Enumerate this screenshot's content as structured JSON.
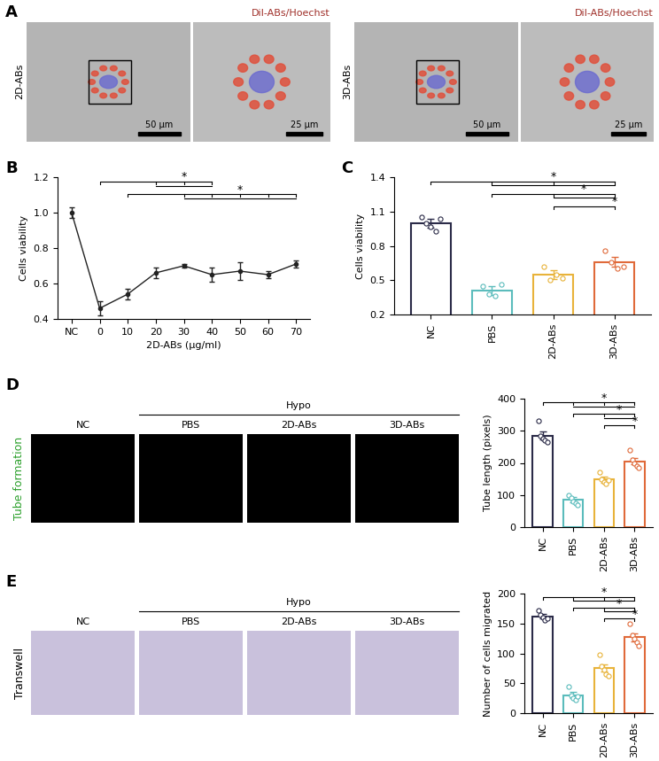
{
  "chart_data": [
    {
      "panel": "B",
      "type": "line",
      "xlabel": "2D-ABs (µg/ml)",
      "ylabel": "Cells viability",
      "categories": [
        "NC",
        "0",
        "10",
        "20",
        "30",
        "40",
        "50",
        "60",
        "70"
      ],
      "values": [
        1.0,
        0.46,
        0.54,
        0.66,
        0.7,
        0.65,
        0.67,
        0.65,
        0.71
      ],
      "errors": [
        0.03,
        0.04,
        0.03,
        0.03,
        0.01,
        0.04,
        0.05,
        0.02,
        0.02
      ],
      "color": "#222222",
      "marker": "o",
      "ylim": [
        0.4,
        1.2
      ],
      "yticks": [
        0.4,
        0.6,
        0.8,
        1.0,
        1.2
      ],
      "significance": [
        {
          "from": "0",
          "to": [
            "20",
            "30",
            "40"
          ],
          "label": "*"
        },
        {
          "from": "10",
          "to": [
            "30",
            "40",
            "50",
            "60",
            "70"
          ],
          "label": "*"
        }
      ]
    },
    {
      "panel": "C",
      "type": "bar",
      "ylabel": "Cells viability",
      "categories": [
        "NC",
        "PBS",
        "2D-ABs",
        "3D-ABs"
      ],
      "values": [
        1.0,
        0.41,
        0.55,
        0.66
      ],
      "errors": [
        0.04,
        0.04,
        0.04,
        0.04
      ],
      "points": [
        [
          1.05,
          1.0,
          0.97,
          0.93,
          1.04
        ],
        [
          0.45,
          0.38,
          0.36,
          0.46
        ],
        [
          0.62,
          0.5,
          0.55,
          0.52
        ],
        [
          0.76,
          0.66,
          0.6,
          0.62
        ]
      ],
      "colors": [
        "#2b2b48",
        "#5bbcbc",
        "#e8b33a",
        "#e06a3a"
      ],
      "ylim": [
        0.2,
        1.4
      ],
      "yticks": [
        0.2,
        0.5,
        0.8,
        1.1,
        1.4
      ],
      "significance": [
        {
          "from": "NC",
          "to": [
            "PBS",
            "2D-ABs",
            "3D-ABs"
          ],
          "label": "*"
        },
        {
          "from": "PBS",
          "to": [
            "2D-ABs",
            "3D-ABs"
          ],
          "label": "*"
        },
        {
          "from": "2D-ABs",
          "to": [
            "3D-ABs"
          ],
          "label": "*"
        }
      ]
    },
    {
      "type": "bar",
      "ylabel": "Tube length (pixels)",
      "categories": [
        "NC",
        "PBS",
        "2D-ABs",
        "3D-ABs"
      ],
      "values": [
        285,
        85,
        148,
        205
      ],
      "errors": [
        12,
        8,
        9,
        10
      ],
      "points": [
        [
          330,
          285,
          275,
          270,
          265
        ],
        [
          100,
          90,
          80,
          75,
          70
        ],
        [
          170,
          150,
          140,
          135,
          145
        ],
        [
          240,
          210,
          200,
          190,
          185
        ]
      ],
      "colors": [
        "#2b2b48",
        "#5bbcbc",
        "#e8b33a",
        "#e06a3a"
      ],
      "ylim": [
        0,
        400
      ],
      "yticks": [
        0,
        100,
        200,
        300,
        400
      ],
      "significance": [
        {
          "from": "NC",
          "to": [
            "PBS",
            "2D-ABs",
            "3D-ABs"
          ],
          "label": "*"
        },
        {
          "from": "PBS",
          "to": [
            "2D-ABs",
            "3D-ABs"
          ],
          "label": "*"
        },
        {
          "from": "2D-ABs",
          "to": [
            "3D-ABs"
          ],
          "label": "*"
        }
      ]
    },
    {
      "type": "bar",
      "ylabel": "Number of cells migrated",
      "categories": [
        "NC",
        "PBS",
        "2D-ABs",
        "3D-ABs"
      ],
      "values": [
        162,
        30,
        75,
        127
      ],
      "errors": [
        4,
        5,
        6,
        7
      ],
      "points": [
        [
          172,
          165,
          160,
          155,
          158
        ],
        [
          45,
          30,
          25,
          22,
          28
        ],
        [
          98,
          78,
          72,
          65,
          62
        ],
        [
          150,
          130,
          125,
          118,
          112
        ]
      ],
      "colors": [
        "#2b2b48",
        "#5bbcbc",
        "#e8b33a",
        "#e06a3a"
      ],
      "ylim": [
        0,
        200
      ],
      "yticks": [
        0,
        50,
        100,
        150,
        200
      ],
      "significance": [
        {
          "from": "NC",
          "to": [
            "PBS",
            "2D-ABs",
            "3D-ABs"
          ],
          "label": "*"
        },
        {
          "from": "PBS",
          "to": [
            "2D-ABs",
            "3D-ABs"
          ],
          "label": "*"
        },
        {
          "from": "2D-ABs",
          "to": [
            "3D-ABs"
          ],
          "label": "*"
        }
      ]
    }
  ],
  "image_panels": [
    {
      "panel": "A",
      "stain": "DiI-ABs/Hoechst",
      "groups": [
        {
          "label": "2D-ABs",
          "scale_bars": [
            "50 µm",
            "25 µm"
          ]
        },
        {
          "label": "3D-ABs",
          "scale_bars": [
            "50 µm",
            "25 µm"
          ]
        }
      ]
    },
    {
      "panel": "D",
      "row_label": "Tube formation",
      "columns": [
        "NC",
        "PBS",
        "2D-ABs",
        "3D-ABs"
      ],
      "group_label": "Hypo",
      "group_columns": [
        "PBS",
        "2D-ABs",
        "3D-ABs"
      ]
    },
    {
      "panel": "E",
      "row_label": "Transwell",
      "columns": [
        "NC",
        "PBS",
        "2D-ABs",
        "3D-ABs"
      ],
      "group_label": "Hypo",
      "group_columns": [
        "PBS",
        "2D-ABs",
        "3D-ABs"
      ]
    }
  ]
}
